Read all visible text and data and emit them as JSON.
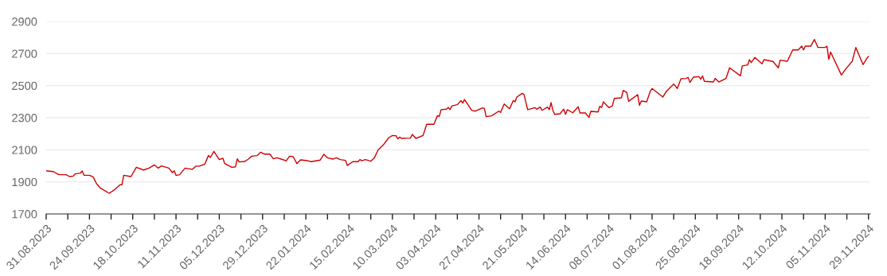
{
  "chart_data": {
    "type": "line",
    "x": [
      "2023-08-31",
      "2023-09-04",
      "2023-09-07",
      "2023-09-11",
      "2023-09-13",
      "2023-09-15",
      "2023-09-16",
      "2023-09-19",
      "2023-09-20",
      "2023-09-21",
      "2023-09-24",
      "2023-09-26",
      "2023-09-28",
      "2023-09-30",
      "2023-10-05",
      "2023-10-08",
      "2023-10-11",
      "2023-10-12",
      "2023-10-13",
      "2023-10-17",
      "2023-10-20",
      "2023-10-24",
      "2023-10-27",
      "2023-10-30",
      "2023-11-01",
      "2023-11-03",
      "2023-11-07",
      "2023-11-09",
      "2023-11-10",
      "2023-11-11",
      "2023-11-13",
      "2023-11-16",
      "2023-11-20",
      "2023-11-22",
      "2023-11-24",
      "2023-11-27",
      "2023-11-29",
      "2023-11-30",
      "2023-12-02",
      "2023-12-05",
      "2023-12-07",
      "2023-12-08",
      "2023-12-12",
      "2023-12-14",
      "2023-12-15",
      "2023-12-16",
      "2023-12-19",
      "2023-12-21",
      "2023-12-23",
      "2023-12-26",
      "2023-12-28",
      "2023-12-30",
      "2024-01-02",
      "2024-01-04",
      "2024-01-06",
      "2024-01-10",
      "2024-01-11",
      "2024-01-13",
      "2024-01-15",
      "2024-01-17",
      "2024-01-19",
      "2024-01-23",
      "2024-01-25",
      "2024-01-30",
      "2024-02-01",
      "2024-02-03",
      "2024-02-06",
      "2024-02-08",
      "2024-02-10",
      "2024-02-13",
      "2024-02-14",
      "2024-02-17",
      "2024-02-20",
      "2024-02-21",
      "2024-02-22",
      "2024-02-24",
      "2024-02-27",
      "2024-02-29",
      "2024-03-02",
      "2024-03-05",
      "2024-03-08",
      "2024-03-10",
      "2024-03-12",
      "2024-03-13",
      "2024-03-14",
      "2024-03-15",
      "2024-03-20",
      "2024-03-21",
      "2024-03-23",
      "2024-03-27",
      "2024-03-29",
      "2024-04-02",
      "2024-04-04",
      "2024-04-05",
      "2024-04-06",
      "2024-04-09",
      "2024-04-10",
      "2024-04-11",
      "2024-04-12",
      "2024-04-15",
      "2024-04-17",
      "2024-04-18",
      "2024-04-19",
      "2024-04-23",
      "2024-04-25",
      "2024-04-29",
      "2024-04-30",
      "2024-05-01",
      "2024-05-04",
      "2024-05-08",
      "2024-05-09",
      "2024-05-11",
      "2024-05-14",
      "2024-05-16",
      "2024-05-17",
      "2024-05-18",
      "2024-05-21",
      "2024-05-22",
      "2024-05-24",
      "2024-05-28",
      "2024-05-29",
      "2024-05-31",
      "2024-06-01",
      "2024-06-04",
      "2024-06-05",
      "2024-06-06",
      "2024-06-07",
      "2024-06-08",
      "2024-06-11",
      "2024-06-13",
      "2024-06-14",
      "2024-06-15",
      "2024-06-18",
      "2024-06-21",
      "2024-06-22",
      "2024-06-25",
      "2024-06-27",
      "2024-06-28",
      "2024-07-02",
      "2024-07-03",
      "2024-07-04",
      "2024-07-05",
      "2024-07-08",
      "2024-07-10",
      "2024-07-11",
      "2024-07-15",
      "2024-07-16",
      "2024-07-18",
      "2024-07-19",
      "2024-07-24",
      "2024-07-25",
      "2024-07-26",
      "2024-07-29",
      "2024-07-31",
      "2024-08-01",
      "2024-08-07",
      "2024-08-09",
      "2024-08-13",
      "2024-08-15",
      "2024-08-17",
      "2024-08-20",
      "2024-08-21",
      "2024-08-22",
      "2024-08-24",
      "2024-08-27",
      "2024-08-28",
      "2024-08-29",
      "2024-08-30",
      "2024-09-04",
      "2024-09-05",
      "2024-09-07",
      "2024-09-11",
      "2024-09-13",
      "2024-09-19",
      "2024-09-20",
      "2024-09-23",
      "2024-09-24",
      "2024-09-25",
      "2024-09-27",
      "2024-10-01",
      "2024-10-02",
      "2024-10-07",
      "2024-10-10",
      "2024-10-11",
      "2024-10-15",
      "2024-10-18",
      "2024-10-21",
      "2024-10-23",
      "2024-10-24",
      "2024-10-25",
      "2024-10-28",
      "2024-10-30",
      "2024-11-01",
      "2024-11-05",
      "2024-11-06",
      "2024-11-07",
      "2024-11-08",
      "2024-11-14",
      "2024-11-16",
      "2024-11-20",
      "2024-11-22",
      "2024-11-26",
      "2024-11-28",
      "2024-11-29"
    ],
    "series": [
      {
        "color": "#cc0000",
        "values": [
          1969,
          1964,
          1945,
          1945,
          1933,
          1936,
          1950,
          1955,
          1968,
          1941,
          1941,
          1931,
          1887,
          1862,
          1829,
          1852,
          1882,
          1882,
          1941,
          1933,
          1991,
          1974,
          1986,
          2006,
          1986,
          1999,
          1986,
          1958,
          1969,
          1940,
          1945,
          1986,
          1978,
          1998,
          1998,
          2011,
          2065,
          2052,
          2090,
          2039,
          2047,
          2014,
          1991,
          1994,
          2044,
          2024,
          2027,
          2041,
          2060,
          2064,
          2085,
          2073,
          2073,
          2044,
          2050,
          2036,
          2030,
          2060,
          2057,
          2014,
          2037,
          2032,
          2026,
          2036,
          2072,
          2050,
          2042,
          2050,
          2039,
          2034,
          2002,
          2026,
          2026,
          2039,
          2032,
          2039,
          2029,
          2050,
          2098,
          2131,
          2176,
          2189,
          2188,
          2168,
          2179,
          2171,
          2173,
          2196,
          2171,
          2189,
          2259,
          2259,
          2313,
          2308,
          2350,
          2353,
          2364,
          2351,
          2374,
          2381,
          2407,
          2391,
          2414,
          2345,
          2341,
          2361,
          2358,
          2307,
          2312,
          2341,
          2333,
          2386,
          2356,
          2407,
          2399,
          2429,
          2452,
          2444,
          2350,
          2363,
          2353,
          2366,
          2346,
          2366,
          2350,
          2394,
          2345,
          2321,
          2325,
          2354,
          2321,
          2350,
          2331,
          2368,
          2330,
          2330,
          2302,
          2340,
          2336,
          2371,
          2364,
          2399,
          2363,
          2374,
          2420,
          2424,
          2470,
          2457,
          2402,
          2444,
          2377,
          2404,
          2399,
          2465,
          2482,
          2429,
          2465,
          2510,
          2482,
          2543,
          2545,
          2551,
          2520,
          2553,
          2556,
          2540,
          2561,
          2527,
          2523,
          2545,
          2523,
          2545,
          2611,
          2561,
          2623,
          2629,
          2662,
          2644,
          2676,
          2636,
          2662,
          2651,
          2611,
          2659,
          2652,
          2723,
          2723,
          2746,
          2723,
          2747,
          2746,
          2788,
          2738,
          2738,
          2746,
          2664,
          2709,
          2566,
          2598,
          2652,
          2738,
          2631,
          2669,
          2682
        ]
      }
    ],
    "xlim": [
      "2023-08-31",
      "2024-11-30"
    ],
    "xticks": [
      {
        "value": "2023-08-31",
        "label": "31.08.2023"
      },
      {
        "value": "2023-09-12",
        "label": null
      },
      {
        "value": "2023-09-24",
        "label": "24.09.2023"
      },
      {
        "value": "2023-10-06",
        "label": null
      },
      {
        "value": "2023-10-18",
        "label": "18.10.2023"
      },
      {
        "value": "2023-10-30",
        "label": null
      },
      {
        "value": "2023-11-11",
        "label": "11.11.2023"
      },
      {
        "value": "2023-11-23",
        "label": null
      },
      {
        "value": "2023-12-05",
        "label": "05.12.2023"
      },
      {
        "value": "2023-12-17",
        "label": null
      },
      {
        "value": "2023-12-29",
        "label": "29.12.2023"
      },
      {
        "value": "2024-01-10",
        "label": null
      },
      {
        "value": "2024-01-22",
        "label": "22.01.2024"
      },
      {
        "value": "2024-02-03",
        "label": null
      },
      {
        "value": "2024-02-15",
        "label": "15.02.2024"
      },
      {
        "value": "2024-02-27",
        "label": null
      },
      {
        "value": "2024-03-10",
        "label": "10.03.2024"
      },
      {
        "value": "2024-03-22",
        "label": null
      },
      {
        "value": "2024-04-03",
        "label": "03.04.2024"
      },
      {
        "value": "2024-04-15",
        "label": null
      },
      {
        "value": "2024-04-27",
        "label": "27.04.2024"
      },
      {
        "value": "2024-05-09",
        "label": null
      },
      {
        "value": "2024-05-21",
        "label": "21.05.2024"
      },
      {
        "value": "2024-06-02",
        "label": null
      },
      {
        "value": "2024-06-14",
        "label": "14.06.2024"
      },
      {
        "value": "2024-06-26",
        "label": null
      },
      {
        "value": "2024-07-08",
        "label": "08.07.2024"
      },
      {
        "value": "2024-07-20",
        "label": null
      },
      {
        "value": "2024-08-01",
        "label": "01.08.2024"
      },
      {
        "value": "2024-08-13",
        "label": null
      },
      {
        "value": "2024-08-25",
        "label": "25.08.2024"
      },
      {
        "value": "2024-09-06",
        "label": null
      },
      {
        "value": "2024-09-18",
        "label": "18.09.2024"
      },
      {
        "value": "2024-09-30",
        "label": null
      },
      {
        "value": "2024-10-12",
        "label": "12.10.2024"
      },
      {
        "value": "2024-10-24",
        "label": null
      },
      {
        "value": "2024-11-05",
        "label": "05.11.2024"
      },
      {
        "value": "2024-11-17",
        "label": null
      },
      {
        "value": "2024-11-29",
        "label": "29.11.2024"
      }
    ],
    "ylim": [
      1700,
      2900
    ],
    "yticks": [
      1700,
      1900,
      2100,
      2300,
      2500,
      2700,
      2900
    ],
    "grid": "y",
    "marker": "none",
    "line_style": "solid"
  }
}
